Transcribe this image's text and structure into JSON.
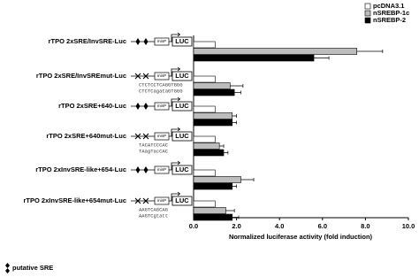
{
  "chart_data": {
    "type": "hbar",
    "x_label": "Normalized luciferase activity (fold induction)",
    "categories": [
      "rTPO 2xSRE/InvSRE-Luc",
      "rTPO 2xSRE/InvSREmut-Luc",
      "rTPO 2xSRE+640-Luc",
      "rTPO 2xSRE+640mut-Luc",
      "rTPO 2xInvSRE-like+654-Luc",
      "rTPO 2xInvSRE-like+654mut-Luc"
    ],
    "sequences": [
      [],
      [
        "CTCTCCTCAGGTGGG",
        "CTCTCagataGTGGG"
      ],
      [],
      [
        "TACATCCCAC",
        "TAagTacCAC"
      ],
      [],
      [
        "AAGTCAGCAG",
        "AAGTCgtatt"
      ]
    ],
    "sre_mutated": [
      false,
      true,
      false,
      true,
      false,
      true
    ],
    "construct": {
      "promoter": "minP",
      "reporter": "LUC"
    },
    "footnote": "putative SRE",
    "series": [
      {
        "name": "pcDNA3.1",
        "color": "#ffffff",
        "values": [
          1.0,
          1.0,
          1.0,
          1.0,
          1.0,
          1.0
        ]
      },
      {
        "name": "nSREBP-1c",
        "color": "#bdbdbd",
        "values": [
          7.6,
          1.7,
          1.8,
          1.2,
          2.2,
          1.5
        ],
        "errors": [
          1.2,
          0.6,
          0.2,
          0.2,
          0.6,
          0.4
        ]
      },
      {
        "name": "nSREBP-2",
        "color": "#000000",
        "values": [
          5.6,
          1.9,
          1.8,
          1.4,
          1.8,
          1.8
        ],
        "errors": [
          0.7,
          0.3,
          0.2,
          0.2,
          0.2,
          0.3
        ]
      }
    ],
    "xlim": [
      0,
      10
    ],
    "xticks": [
      {
        "value": 0,
        "label": "0.0"
      },
      {
        "value": 2,
        "label": "2.0"
      },
      {
        "value": 4,
        "label": "4.0"
      },
      {
        "value": 6,
        "label": "6.0"
      },
      {
        "value": 8,
        "label": "8.0"
      },
      {
        "value": 10,
        "label": "10.0"
      }
    ],
    "legend": "top-right"
  }
}
